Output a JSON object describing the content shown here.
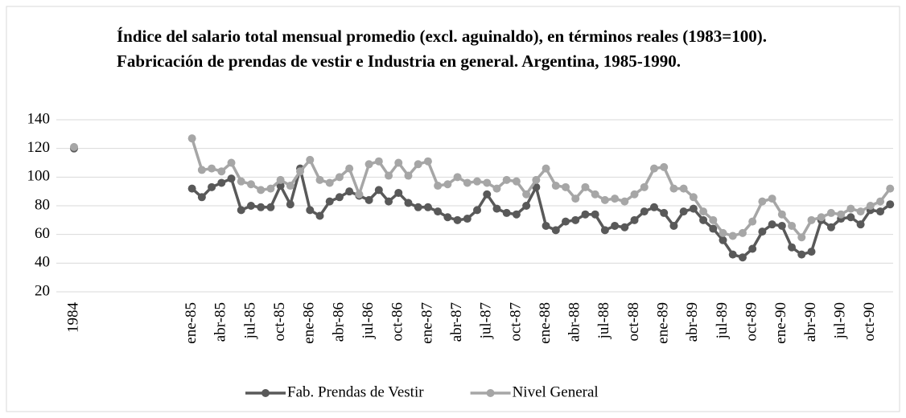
{
  "chart_data": {
    "type": "line",
    "title": "Índice del salario total mensual promedio (excl. aguinaldo), en términos reales (1983=100). Fabricación  de prendas de vestir e Industria  en general. Argentina,  1985-1990.",
    "categories": [
      "1984",
      null,
      null,
      null,
      null,
      null,
      null,
      null,
      null,
      null,
      null,
      null,
      "ene-85",
      null,
      null,
      "abr-85",
      null,
      null,
      "jul-85",
      null,
      null,
      "oct-85",
      null,
      null,
      "ene-86",
      null,
      null,
      "abr-86",
      null,
      null,
      "jul-86",
      null,
      null,
      "oct-86",
      null,
      null,
      "ene-87",
      null,
      null,
      "abr-87",
      null,
      null,
      "jul-87",
      null,
      null,
      "oct-87",
      null,
      null,
      "ene-88",
      null,
      null,
      "abr-88",
      null,
      null,
      "jul-88",
      null,
      null,
      "oct-88",
      null,
      null,
      "ene-89",
      null,
      null,
      "abr-89",
      null,
      null,
      "jul-89",
      null,
      null,
      "oct-89",
      null,
      null,
      "ene-90",
      null,
      null,
      "abr-90",
      null,
      null,
      "jul-90",
      null,
      null,
      "oct-90",
      null,
      null
    ],
    "series": [
      {
        "name": "Fab. Prendas de Vestir",
        "color": "#595959",
        "values": [
          120,
          null,
          null,
          null,
          null,
          null,
          null,
          null,
          null,
          null,
          null,
          null,
          92,
          86,
          93,
          96,
          99,
          77,
          80,
          79,
          79,
          94,
          81,
          106,
          77,
          73,
          83,
          86,
          90,
          87,
          84,
          91,
          83,
          89,
          82,
          79,
          79,
          76,
          72,
          70,
          71,
          77,
          88,
          78,
          75,
          74,
          80,
          93,
          66,
          63,
          69,
          70,
          74,
          74,
          63,
          66,
          65,
          70,
          76,
          79,
          75,
          66,
          76,
          78,
          70,
          64,
          56,
          46,
          44,
          50,
          62,
          67,
          66,
          51,
          46,
          48,
          70,
          65,
          71,
          72,
          67,
          77,
          76,
          81
        ]
      },
      {
        "name": "Nivel General",
        "color": "#a6a6a6",
        "values": [
          121,
          null,
          null,
          null,
          null,
          null,
          null,
          null,
          null,
          null,
          null,
          null,
          127,
          105,
          106,
          104,
          110,
          97,
          95,
          91,
          92,
          98,
          94,
          104,
          112,
          98,
          96,
          100,
          106,
          88,
          109,
          111,
          101,
          110,
          101,
          109,
          111,
          94,
          95,
          100,
          96,
          97,
          96,
          92,
          98,
          97,
          88,
          98,
          106,
          94,
          93,
          85,
          93,
          88,
          84,
          85,
          83,
          88,
          93,
          106,
          107,
          92,
          92,
          86,
          76,
          70,
          61,
          59,
          61,
          69,
          83,
          85,
          74,
          66,
          58,
          70,
          72,
          75,
          74,
          78,
          76,
          80,
          83,
          92
        ]
      }
    ],
    "ylim": [
      20,
      140
    ],
    "yticks": [
      20,
      40,
      60,
      80,
      100,
      120,
      140
    ],
    "grid": true,
    "legend": "bottom"
  }
}
